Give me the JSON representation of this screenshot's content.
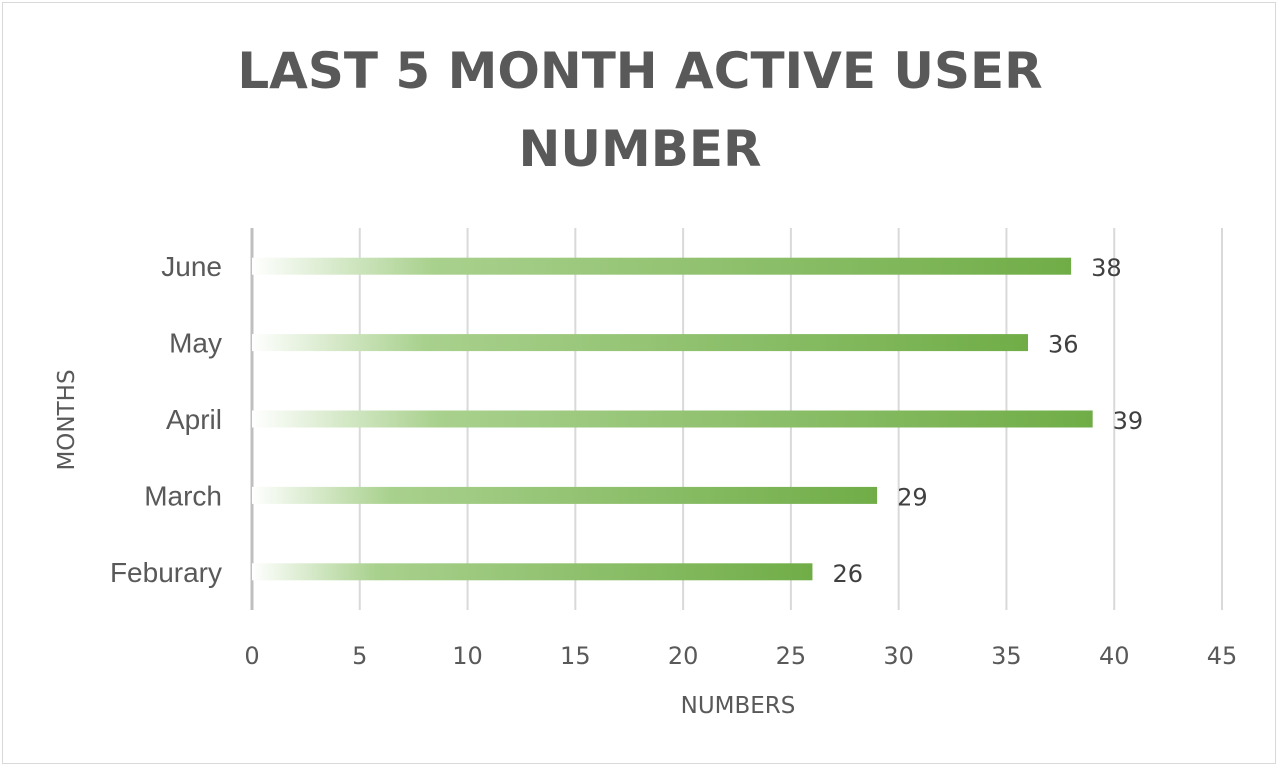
{
  "chart_data": {
    "type": "bar",
    "orientation": "horizontal",
    "title_lines": [
      "LAST 5 MONTH ACTIVE USER",
      "NUMBER"
    ],
    "categories": [
      "June",
      "May",
      "April",
      "March",
      "Feburary"
    ],
    "values": [
      38,
      36,
      39,
      29,
      26
    ],
    "data_labels": [
      "38",
      "36",
      "39",
      "29",
      "26"
    ],
    "xlabel": "NUMBERS",
    "ylabel": "MONTHS",
    "xlim": [
      0,
      45
    ],
    "xticks": [
      0,
      5,
      10,
      15,
      20,
      25,
      30,
      35,
      40,
      45
    ],
    "xtick_labels": [
      "0",
      "5",
      "10",
      "15",
      "20",
      "25",
      "30",
      "35",
      "40",
      "45"
    ],
    "grid": "vertical",
    "legend": "none",
    "colors": {
      "bar_end": "#70ad47",
      "bar_mid": "#a9d18e",
      "bar_start": "#ffffff",
      "gridline": "#d9d9d9",
      "axis_line": "#bfbfbf",
      "text": "#595959"
    }
  }
}
